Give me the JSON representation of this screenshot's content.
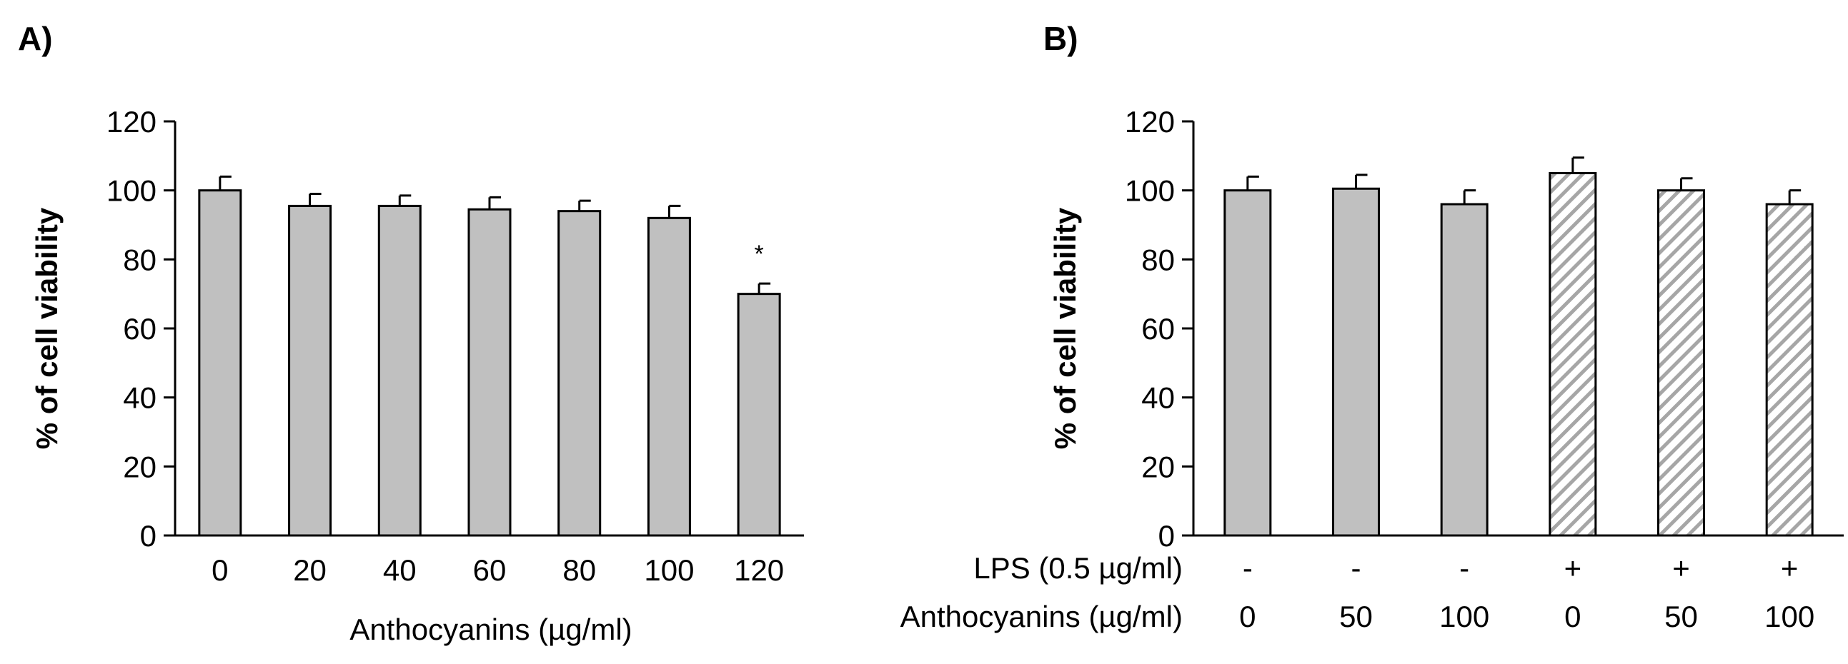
{
  "chart_data": [
    {
      "type": "bar",
      "panel": "A)",
      "title": "",
      "xlabel": "Anthocyanins (µg/ml)",
      "ylabel": "% of cell viability",
      "ylim": [
        0,
        120
      ],
      "yticks": [
        0,
        20,
        40,
        60,
        80,
        100,
        120
      ],
      "grid": false,
      "categories": [
        "0",
        "20",
        "40",
        "60",
        "80",
        "100",
        "120"
      ],
      "values": [
        100,
        95.5,
        95.5,
        94.5,
        94,
        92,
        70
      ],
      "errors": [
        4,
        3.5,
        3,
        3.5,
        3,
        3.5,
        3
      ],
      "fill": [
        "solid",
        "solid",
        "solid",
        "solid",
        "solid",
        "solid",
        "solid"
      ],
      "annotations": [
        "",
        "",
        "",
        "",
        "",
        "",
        "*"
      ]
    },
    {
      "type": "bar",
      "panel": "B)",
      "title": "",
      "ylabel": "% of cell viability",
      "ylim": [
        0,
        120
      ],
      "yticks": [
        0,
        20,
        40,
        60,
        80,
        100,
        120
      ],
      "grid": false,
      "values": [
        100,
        100.5,
        96,
        105,
        100,
        96
      ],
      "errors": [
        4,
        4,
        4,
        4.5,
        3.5,
        4
      ],
      "fill": [
        "solid",
        "solid",
        "solid",
        "hatched",
        "hatched",
        "hatched"
      ],
      "row_labels": [
        {
          "label": "LPS (0.5 µg/ml)",
          "values": [
            "-",
            "-",
            "-",
            "+",
            "+",
            "+"
          ]
        },
        {
          "label": "Anthocyanins (µg/ml)",
          "values": [
            "0",
            "50",
            "100",
            "0",
            "50",
            "100"
          ]
        }
      ]
    }
  ],
  "colors": {
    "bar_fill": "#c0c0c0",
    "hatch_line": "#a6a6a6",
    "hatch_background": "#ffffff",
    "outline": "#000000"
  }
}
